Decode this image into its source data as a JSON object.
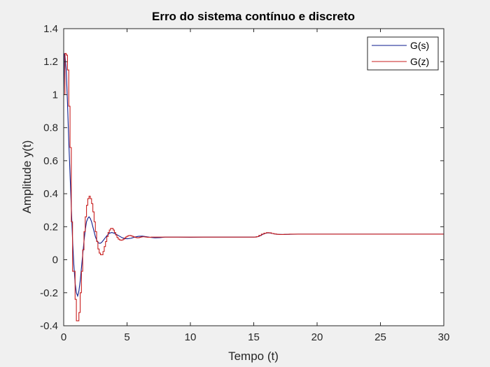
{
  "chart_data": {
    "type": "line",
    "title": "Erro do sistema contínuo e discreto",
    "xlabel": "Tempo (t)",
    "ylabel": "Amplitude y(t)",
    "xlim": [
      0,
      30
    ],
    "ylim": [
      -0.4,
      1.4
    ],
    "xticks": [
      0,
      5,
      10,
      15,
      20,
      25,
      30
    ],
    "yticks": [
      -0.4,
      -0.2,
      0,
      0.2,
      0.4,
      0.6,
      0.8,
      1,
      1.2,
      1.4
    ],
    "xtick_labels": [
      "0",
      "5",
      "10",
      "15",
      "20",
      "25",
      "30"
    ],
    "ytick_labels": [
      "-0.4",
      "-0.2",
      "0",
      "0.2",
      "0.4",
      "0.6",
      "0.8",
      "1",
      "1.2",
      "1.4"
    ],
    "grid": false,
    "legend_position": "top-right",
    "series": [
      {
        "name": "G(s)",
        "color": "#0a1a8c",
        "style": "continuous",
        "x": [
          0,
          0.05,
          0.1,
          0.2,
          0.3,
          0.4,
          0.5,
          0.6,
          0.7,
          0.8,
          0.9,
          1.0,
          1.1,
          1.2,
          1.3,
          1.4,
          1.5,
          1.6,
          1.7,
          1.8,
          1.9,
          2.0,
          2.1,
          2.2,
          2.3,
          2.4,
          2.5,
          2.6,
          2.7,
          2.8,
          2.9,
          3.0,
          3.2,
          3.4,
          3.6,
          3.8,
          4.0,
          4.2,
          4.4,
          4.6,
          4.8,
          5.0,
          5.3,
          5.6,
          5.9,
          6.2,
          6.5,
          6.8,
          7.2,
          7.6,
          8.0,
          9.0,
          10.0,
          11.0,
          12.0,
          13.0,
          14.0,
          15.0,
          15.3,
          15.5,
          15.7,
          15.9,
          16.1,
          16.3,
          16.6,
          16.9,
          17.3,
          17.8,
          18.5,
          19.5,
          21,
          23,
          25,
          27,
          30
        ],
        "y": [
          1.0,
          1.25,
          1.24,
          1.15,
          0.95,
          0.72,
          0.52,
          0.32,
          0.12,
          -0.03,
          -0.14,
          -0.2,
          -0.22,
          -0.19,
          -0.13,
          -0.05,
          0.03,
          0.11,
          0.18,
          0.23,
          0.25,
          0.26,
          0.25,
          0.23,
          0.2,
          0.17,
          0.14,
          0.12,
          0.105,
          0.1,
          0.1,
          0.105,
          0.125,
          0.145,
          0.16,
          0.165,
          0.16,
          0.152,
          0.143,
          0.134,
          0.129,
          0.127,
          0.13,
          0.137,
          0.142,
          0.143,
          0.14,
          0.136,
          0.133,
          0.134,
          0.137,
          0.137,
          0.136,
          0.137,
          0.137,
          0.137,
          0.137,
          0.137,
          0.139,
          0.145,
          0.153,
          0.16,
          0.163,
          0.162,
          0.157,
          0.154,
          0.153,
          0.154,
          0.155,
          0.155,
          0.155,
          0.155,
          0.155,
          0.155,
          0.155
        ]
      },
      {
        "name": "G(z)",
        "color": "#c81e1e",
        "style": "staircase",
        "x": [
          0,
          0.1,
          0.2,
          0.3,
          0.4,
          0.5,
          0.6,
          0.7,
          0.8,
          0.9,
          1.0,
          1.1,
          1.2,
          1.3,
          1.4,
          1.5,
          1.6,
          1.7,
          1.8,
          1.9,
          2.0,
          2.1,
          2.2,
          2.3,
          2.4,
          2.5,
          2.6,
          2.7,
          2.8,
          2.9,
          3.0,
          3.1,
          3.2,
          3.3,
          3.4,
          3.5,
          3.6,
          3.7,
          3.8,
          3.9,
          4.0,
          4.1,
          4.2,
          4.3,
          4.4,
          4.5,
          4.6,
          4.7,
          4.8,
          4.9,
          5.0,
          5.1,
          5.2,
          5.3,
          5.4,
          5.5,
          5.6,
          5.7,
          5.8,
          5.9,
          6.0,
          6.1,
          6.2,
          6.3,
          6.4,
          6.5,
          6.6,
          6.7,
          6.8,
          6.9,
          7.0,
          7.1,
          7.2,
          7.3,
          7.4,
          7.5,
          7.6,
          7.7,
          7.8,
          7.9,
          8.0,
          8.2,
          8.4,
          8.6,
          8.8,
          9.0,
          9.5,
          10.0,
          11.0,
          12.0,
          13.0,
          14.0,
          15.0,
          15.2,
          15.4,
          15.6,
          15.8,
          16.0,
          16.2,
          16.4,
          16.6,
          16.8,
          17.0,
          17.4,
          17.8,
          18.4,
          19.2,
          20.5,
          22,
          25,
          30
        ],
        "y": [
          1.0,
          1.25,
          1.24,
          1.15,
          0.93,
          0.68,
          0.23,
          -0.07,
          -0.07,
          -0.24,
          -0.37,
          -0.37,
          -0.32,
          -0.2,
          -0.07,
          0.06,
          0.17,
          0.26,
          0.33,
          0.37,
          0.385,
          0.37,
          0.34,
          0.29,
          0.23,
          0.17,
          0.11,
          0.065,
          0.04,
          0.03,
          0.03,
          0.05,
          0.08,
          0.11,
          0.14,
          0.165,
          0.18,
          0.19,
          0.19,
          0.18,
          0.165,
          0.15,
          0.135,
          0.125,
          0.12,
          0.118,
          0.12,
          0.125,
          0.132,
          0.138,
          0.143,
          0.146,
          0.147,
          0.145,
          0.142,
          0.139,
          0.136,
          0.134,
          0.133,
          0.134,
          0.136,
          0.138,
          0.139,
          0.139,
          0.138,
          0.137,
          0.136,
          0.136,
          0.136,
          0.137,
          0.137,
          0.137,
          0.137,
          0.137,
          0.137,
          0.137,
          0.137,
          0.137,
          0.137,
          0.137,
          0.137,
          0.137,
          0.137,
          0.137,
          0.137,
          0.137,
          0.137,
          0.137,
          0.137,
          0.137,
          0.137,
          0.137,
          0.137,
          0.14,
          0.147,
          0.155,
          0.161,
          0.164,
          0.163,
          0.159,
          0.156,
          0.154,
          0.153,
          0.154,
          0.155,
          0.155,
          0.155,
          0.155,
          0.155,
          0.155,
          0.155
        ]
      }
    ]
  }
}
